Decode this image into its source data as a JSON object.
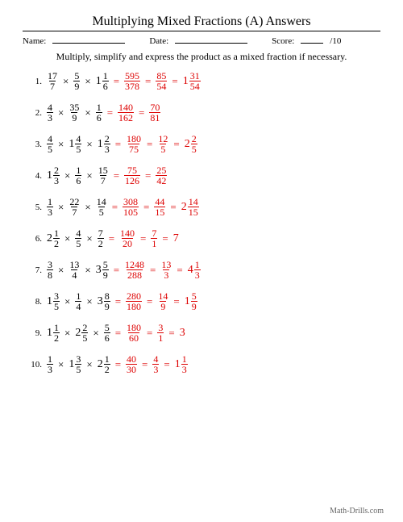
{
  "title": "Multiplying Mixed Fractions (A) Answers",
  "meta": {
    "name_label": "Name:",
    "date_label": "Date:",
    "score_label": "Score:",
    "score_total": "/10"
  },
  "instruction": "Multiply, simplify and express the product as a mixed fraction if necessary.",
  "colors": {
    "answer": "#d00000",
    "text": "#000000",
    "bg": "#ffffff"
  },
  "ops": {
    "times": "×",
    "eq": "="
  },
  "problems": [
    {
      "n": "1.",
      "terms": [
        {
          "kind": "frac",
          "num": "17",
          "den": "7"
        },
        {
          "kind": "frac",
          "num": "5",
          "den": "9"
        },
        {
          "kind": "mixed",
          "whole": "1",
          "num": "1",
          "den": "6"
        }
      ],
      "steps": [
        {
          "kind": "frac",
          "num": "595",
          "den": "378"
        },
        {
          "kind": "frac",
          "num": "85",
          "den": "54"
        },
        {
          "kind": "mixed",
          "whole": "1",
          "num": "31",
          "den": "54"
        }
      ]
    },
    {
      "n": "2.",
      "terms": [
        {
          "kind": "frac",
          "num": "4",
          "den": "3"
        },
        {
          "kind": "frac",
          "num": "35",
          "den": "9"
        },
        {
          "kind": "frac",
          "num": "1",
          "den": "6"
        }
      ],
      "steps": [
        {
          "kind": "frac",
          "num": "140",
          "den": "162"
        },
        {
          "kind": "frac",
          "num": "70",
          "den": "81"
        }
      ]
    },
    {
      "n": "3.",
      "terms": [
        {
          "kind": "frac",
          "num": "4",
          "den": "5"
        },
        {
          "kind": "mixed",
          "whole": "1",
          "num": "4",
          "den": "5"
        },
        {
          "kind": "mixed",
          "whole": "1",
          "num": "2",
          "den": "3"
        }
      ],
      "steps": [
        {
          "kind": "frac",
          "num": "180",
          "den": "75"
        },
        {
          "kind": "frac",
          "num": "12",
          "den": "5"
        },
        {
          "kind": "mixed",
          "whole": "2",
          "num": "2",
          "den": "5"
        }
      ]
    },
    {
      "n": "4.",
      "terms": [
        {
          "kind": "mixed",
          "whole": "1",
          "num": "2",
          "den": "3"
        },
        {
          "kind": "frac",
          "num": "1",
          "den": "6"
        },
        {
          "kind": "frac",
          "num": "15",
          "den": "7"
        }
      ],
      "steps": [
        {
          "kind": "frac",
          "num": "75",
          "den": "126"
        },
        {
          "kind": "frac",
          "num": "25",
          "den": "42"
        }
      ]
    },
    {
      "n": "5.",
      "terms": [
        {
          "kind": "frac",
          "num": "1",
          "den": "3"
        },
        {
          "kind": "frac",
          "num": "22",
          "den": "7"
        },
        {
          "kind": "frac",
          "num": "14",
          "den": "5"
        }
      ],
      "steps": [
        {
          "kind": "frac",
          "num": "308",
          "den": "105"
        },
        {
          "kind": "frac",
          "num": "44",
          "den": "15"
        },
        {
          "kind": "mixed",
          "whole": "2",
          "num": "14",
          "den": "15"
        }
      ]
    },
    {
      "n": "6.",
      "terms": [
        {
          "kind": "mixed",
          "whole": "2",
          "num": "1",
          "den": "2"
        },
        {
          "kind": "frac",
          "num": "4",
          "den": "5"
        },
        {
          "kind": "frac",
          "num": "7",
          "den": "2"
        }
      ],
      "steps": [
        {
          "kind": "frac",
          "num": "140",
          "den": "20"
        },
        {
          "kind": "frac",
          "num": "7",
          "den": "1"
        },
        {
          "kind": "whole",
          "whole": "7"
        }
      ]
    },
    {
      "n": "7.",
      "terms": [
        {
          "kind": "frac",
          "num": "3",
          "den": "8"
        },
        {
          "kind": "frac",
          "num": "13",
          "den": "4"
        },
        {
          "kind": "mixed",
          "whole": "3",
          "num": "5",
          "den": "9"
        }
      ],
      "steps": [
        {
          "kind": "frac",
          "num": "1248",
          "den": "288"
        },
        {
          "kind": "frac",
          "num": "13",
          "den": "3"
        },
        {
          "kind": "mixed",
          "whole": "4",
          "num": "1",
          "den": "3"
        }
      ]
    },
    {
      "n": "8.",
      "terms": [
        {
          "kind": "mixed",
          "whole": "1",
          "num": "3",
          "den": "5"
        },
        {
          "kind": "frac",
          "num": "1",
          "den": "4"
        },
        {
          "kind": "mixed",
          "whole": "3",
          "num": "8",
          "den": "9"
        }
      ],
      "steps": [
        {
          "kind": "frac",
          "num": "280",
          "den": "180"
        },
        {
          "kind": "frac",
          "num": "14",
          "den": "9"
        },
        {
          "kind": "mixed",
          "whole": "1",
          "num": "5",
          "den": "9"
        }
      ]
    },
    {
      "n": "9.",
      "terms": [
        {
          "kind": "mixed",
          "whole": "1",
          "num": "1",
          "den": "2"
        },
        {
          "kind": "mixed",
          "whole": "2",
          "num": "2",
          "den": "5"
        },
        {
          "kind": "frac",
          "num": "5",
          "den": "6"
        }
      ],
      "steps": [
        {
          "kind": "frac",
          "num": "180",
          "den": "60"
        },
        {
          "kind": "frac",
          "num": "3",
          "den": "1"
        },
        {
          "kind": "whole",
          "whole": "3"
        }
      ]
    },
    {
      "n": "10.",
      "terms": [
        {
          "kind": "frac",
          "num": "1",
          "den": "3"
        },
        {
          "kind": "mixed",
          "whole": "1",
          "num": "3",
          "den": "5"
        },
        {
          "kind": "mixed",
          "whole": "2",
          "num": "1",
          "den": "2"
        }
      ],
      "steps": [
        {
          "kind": "frac",
          "num": "40",
          "den": "30"
        },
        {
          "kind": "frac",
          "num": "4",
          "den": "3"
        },
        {
          "kind": "mixed",
          "whole": "1",
          "num": "1",
          "den": "3"
        }
      ]
    }
  ],
  "footer": "Math-Drills.com"
}
